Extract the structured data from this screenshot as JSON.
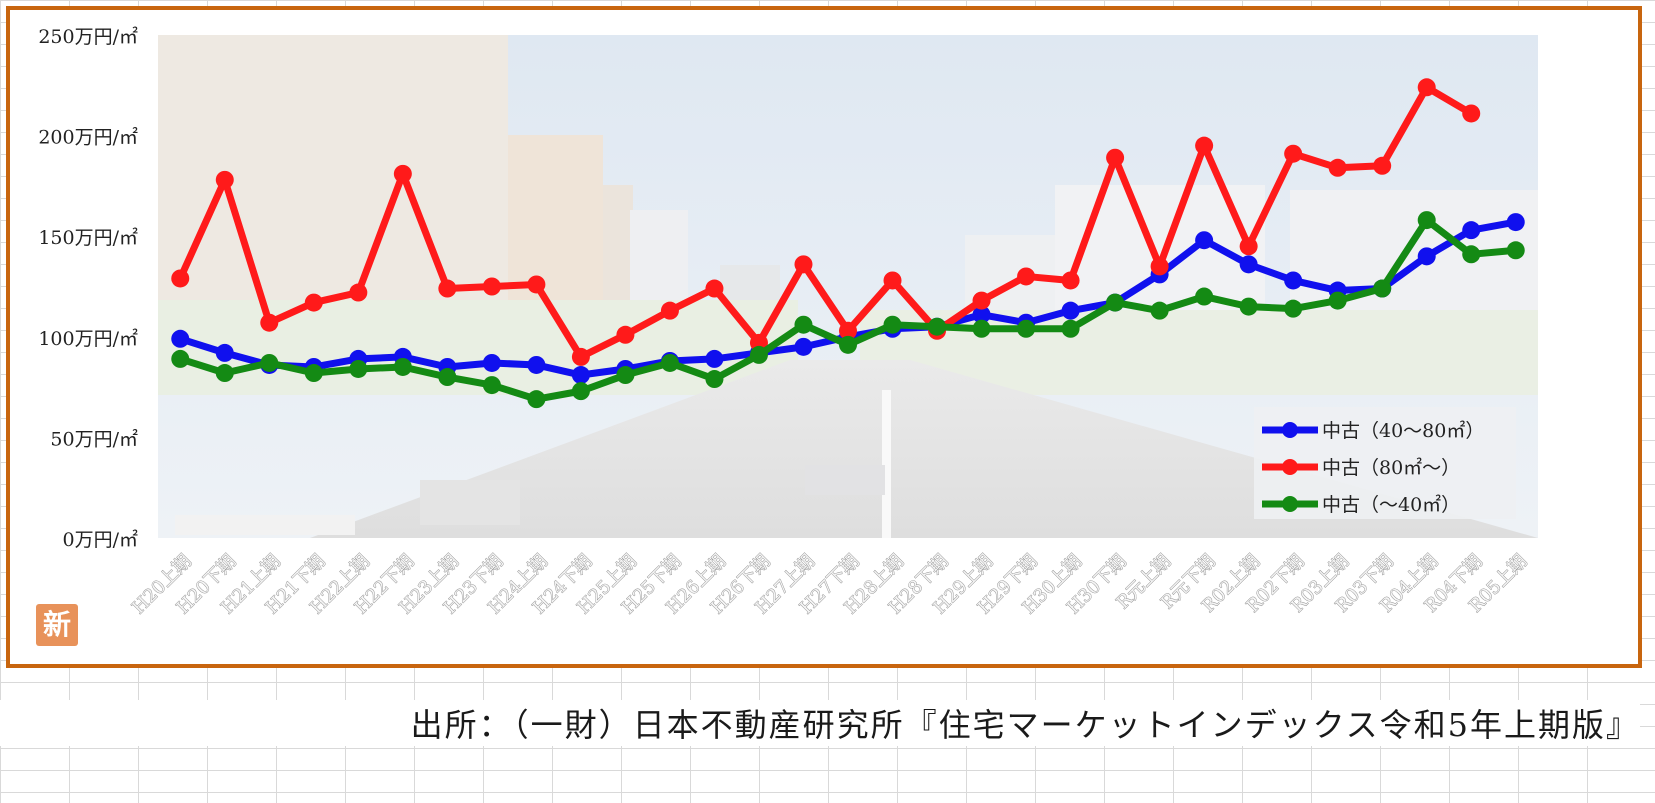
{
  "colors": {
    "frame": "#c8650e",
    "series_blue": "#1010ee",
    "series_red": "#ff1a1a",
    "series_green": "#148a14"
  },
  "badge": "新",
  "source_text": "出所：（一財）日本不動産研究所『住宅マーケットインデックス令和5年上期版』",
  "chart_data": {
    "type": "line",
    "title": "",
    "xlabel": "",
    "ylabel": "",
    "ylim": [
      0,
      250
    ],
    "yticks": [
      0,
      50,
      100,
      150,
      200,
      250
    ],
    "ytick_labels": [
      "0万円/㎡",
      "50万円/㎡",
      "100万円/㎡",
      "150万円/㎡",
      "200万円/㎡",
      "250万円/㎡"
    ],
    "grid": false,
    "background": "street-photo",
    "legend_position": "bottom-right",
    "categories": [
      "H20上期",
      "H20下期",
      "H21上期",
      "H21下期",
      "H22上期",
      "H22下期",
      "H23上期",
      "H23下期",
      "H24上期",
      "H24下期",
      "H25上期",
      "H25下期",
      "H26上期",
      "H26下期",
      "H27上期",
      "H27下期",
      "H28上期",
      "H28下期",
      "H29上期",
      "H29下期",
      "H30上期",
      "H30下期",
      "R元上期",
      "R元下期",
      "R02上期",
      "R02下期",
      "R03上期",
      "R03下期",
      "R04上期",
      "R04下期",
      "R05上期"
    ],
    "series": [
      {
        "name": "中古（40～80㎡）",
        "color": "#1010ee",
        "values": [
          99,
          92,
          86,
          85,
          89,
          90,
          85,
          87,
          86,
          81,
          84,
          88,
          89,
          92,
          95,
          100,
          104,
          105,
          111,
          107,
          113,
          117,
          131,
          148,
          136,
          128,
          123,
          124,
          140,
          153,
          157
        ]
      },
      {
        "name": "中古（80㎡～）",
        "color": "#ff1a1a",
        "values": [
          129,
          178,
          107,
          117,
          122,
          181,
          124,
          125,
          126,
          90,
          101,
          113,
          124,
          97,
          136,
          103,
          128,
          103,
          118,
          130,
          128,
          189,
          135,
          195,
          145,
          191,
          184,
          185,
          224,
          211,
          null
        ]
      },
      {
        "name": "中古（～40㎡）",
        "color": "#148a14",
        "values": [
          89,
          82,
          87,
          82,
          84,
          85,
          80,
          76,
          69,
          73,
          81,
          87,
          79,
          91,
          106,
          96,
          106,
          105,
          104,
          104,
          104,
          117,
          113,
          120,
          115,
          114,
          118,
          124,
          158,
          141,
          143
        ]
      }
    ]
  }
}
